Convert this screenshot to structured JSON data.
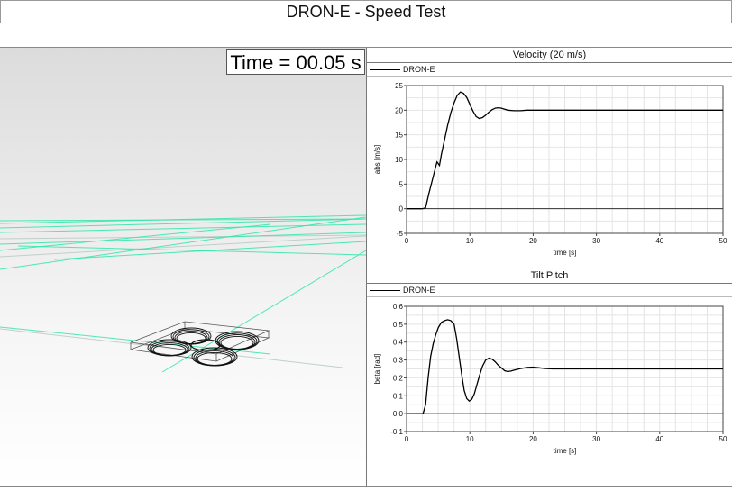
{
  "window": {
    "title": "DRON-E - Speed Test"
  },
  "viewport": {
    "time_label": "Time = 00.05 s",
    "grid_color": "#2ee6a8",
    "model": "drone-wireframe"
  },
  "charts": {
    "velocity": {
      "title": "Velocity (20 m/s)",
      "legend": "DRON-E",
      "chart_data": {
        "type": "line",
        "xlabel": "time [s]",
        "ylabel": "abs [m/s]",
        "xlim": [
          0,
          50
        ],
        "ylim": [
          -5,
          25
        ],
        "xticks": [
          0,
          10,
          20,
          30,
          40,
          50
        ],
        "yticks": [
          -5,
          0,
          5,
          10,
          15,
          20,
          25
        ],
        "grid": true,
        "series": [
          {
            "name": "DRON-E",
            "color": "#000000",
            "x": [
              0,
              2.5,
              3,
              3.5,
              4,
              4.5,
              4.8,
              5.2,
              5.5,
              6,
              6.5,
              7,
              7.5,
              8,
              8.5,
              9,
              9.5,
              10,
              10.5,
              11,
              11.5,
              12,
              12.5,
              13,
              13.5,
              14,
              14.5,
              15,
              15.5,
              16,
              17,
              18,
              19,
              20,
              25,
              30,
              40,
              50
            ],
            "y": [
              0,
              0,
              0.2,
              3,
              5.5,
              8,
              9.5,
              8.8,
              11,
              14,
              17,
              19.5,
              21.5,
              23,
              23.7,
              23.4,
              22.6,
              21.2,
              19.8,
              18.7,
              18.3,
              18.5,
              19,
              19.6,
              20.1,
              20.4,
              20.5,
              20.4,
              20.2,
              20.0,
              19.9,
              19.9,
              20.0,
              20.0,
              20.0,
              20.0,
              20.0,
              20.0
            ]
          }
        ]
      }
    },
    "pitch": {
      "title": "Tilt Pitch",
      "legend": "DRON-E",
      "chart_data": {
        "type": "line",
        "xlabel": "time [s]",
        "ylabel": "beta [rad]",
        "xlim": [
          0,
          50
        ],
        "ylim": [
          -0.1,
          0.6
        ],
        "xticks": [
          0,
          10,
          20,
          30,
          40,
          50
        ],
        "yticks": [
          -0.1,
          0.0,
          0.1,
          0.2,
          0.3,
          0.4,
          0.5,
          0.6
        ],
        "ytick_labels": [
          "-0.1",
          "0.0",
          "0.1",
          "0.2",
          "0.3",
          "0.4",
          "0.5",
          "0.6"
        ],
        "grid": true,
        "series": [
          {
            "name": "DRON-E",
            "color": "#000000",
            "x": [
              0,
              2.6,
              3.0,
              3.4,
              3.8,
              4.2,
              4.6,
              5.0,
              5.5,
              6.0,
              6.5,
              7.0,
              7.5,
              7.9,
              8.3,
              8.7,
              9.1,
              9.5,
              9.9,
              10.3,
              10.7,
              11.1,
              11.5,
              12.0,
              12.5,
              13.0,
              13.5,
              14.0,
              14.5,
              15.0,
              15.5,
              16.0,
              16.5,
              17.0,
              18.0,
              19.0,
              20.0,
              21.0,
              22.0,
              23.0,
              25.0,
              30.0,
              40.0,
              50.0
            ],
            "y": [
              0,
              0,
              0.05,
              0.2,
              0.32,
              0.39,
              0.44,
              0.48,
              0.51,
              0.52,
              0.525,
              0.52,
              0.5,
              0.42,
              0.32,
              0.22,
              0.13,
              0.085,
              0.07,
              0.08,
              0.11,
              0.16,
              0.21,
              0.265,
              0.3,
              0.31,
              0.305,
              0.29,
              0.27,
              0.255,
              0.24,
              0.235,
              0.238,
              0.243,
              0.252,
              0.258,
              0.26,
              0.256,
              0.252,
              0.25,
              0.25,
              0.25,
              0.25,
              0.25
            ]
          }
        ]
      }
    }
  }
}
